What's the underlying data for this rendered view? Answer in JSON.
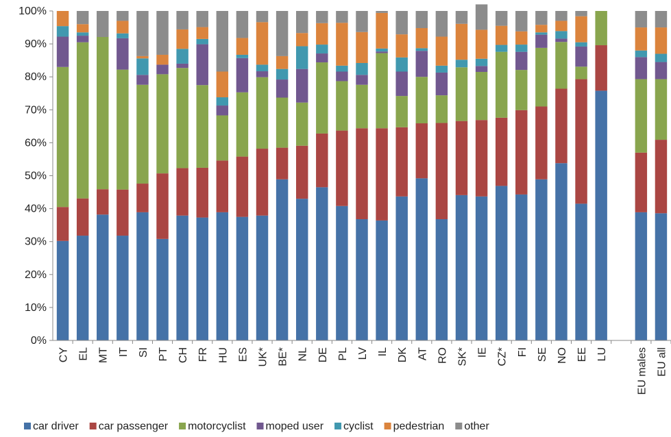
{
  "chart_data": {
    "type": "bar",
    "stacked": true,
    "categories": [
      "CY",
      "EL",
      "MT",
      "IT",
      "SI",
      "PT",
      "CH",
      "FR",
      "HU",
      "ES",
      "UK*",
      "BE*",
      "NL",
      "DE",
      "PL",
      "LV",
      "IL",
      "DK",
      "AT",
      "RO",
      "SK*",
      "IE",
      "CZ*",
      "FI",
      "SE",
      "NO",
      "EE",
      "LU",
      "",
      "EU males",
      "EU all"
    ],
    "ylim": [
      0,
      100
    ],
    "y_ticks": [
      "0%",
      "10%",
      "20%",
      "30%",
      "40%",
      "50%",
      "60%",
      "70%",
      "80%",
      "90%",
      "100%"
    ],
    "grid": false,
    "legend_position": "bottom",
    "series": [
      {
        "name": "car driver",
        "color": "#4572a7",
        "values": [
          30.2,
          31.8,
          38.2,
          31.8,
          38.9,
          30.8,
          37.9,
          37.3,
          38.9,
          37.5,
          37.9,
          48.9,
          43.0,
          46.5,
          40.8,
          36.8,
          36.4,
          43.7,
          49.2,
          36.8,
          44.1,
          43.7,
          46.9,
          44.3,
          48.9,
          53.8,
          41.5,
          75.8,
          0,
          38.9,
          38.6
        ]
      },
      {
        "name": "car passenger",
        "color": "#aa4643",
        "values": [
          10.3,
          11.3,
          7.7,
          14.0,
          8.7,
          19.9,
          14.4,
          15.1,
          15.7,
          18.3,
          20.3,
          9.6,
          16.1,
          16.3,
          22.9,
          27.6,
          28.0,
          21.0,
          16.7,
          29.2,
          22.5,
          23.2,
          20.7,
          25.6,
          22.1,
          22.6,
          37.8,
          13.8,
          0,
          18.1,
          22.3
        ]
      },
      {
        "name": "motorcyclist",
        "color": "#89a54e",
        "values": [
          42.5,
          47.4,
          46.2,
          36.4,
          30.0,
          30.1,
          30.4,
          25.1,
          13.7,
          19.5,
          21.7,
          15.2,
          13.1,
          21.6,
          15.0,
          13.2,
          22.8,
          9.5,
          14.1,
          8.4,
          16.3,
          14.6,
          20.0,
          12.2,
          17.8,
          14.2,
          3.8,
          10.4,
          0,
          22.3,
          18.4
        ]
      },
      {
        "name": "moped user",
        "color": "#71588f",
        "values": [
          9.2,
          2.0,
          0,
          9.5,
          3.0,
          2.9,
          1.3,
          12.4,
          3.0,
          10.4,
          1.8,
          5.5,
          10.2,
          2.7,
          2.9,
          3.0,
          0.5,
          7.4,
          7.9,
          6.9,
          0,
          1.8,
          0,
          5.5,
          4.0,
          1.0,
          6.1,
          0,
          0,
          6.7,
          5.2
        ]
      },
      {
        "name": "cyclist",
        "color": "#4198af",
        "values": [
          3.2,
          1.0,
          0,
          1.5,
          5.0,
          0,
          4.5,
          1.6,
          2.5,
          1.0,
          2.0,
          3.2,
          6.9,
          2.7,
          1.8,
          3.6,
          0.9,
          4.3,
          0.8,
          2.1,
          2.3,
          2.2,
          2.1,
          2.2,
          0.7,
          2.3,
          1.3,
          0,
          0,
          2.0,
          2.5
        ]
      },
      {
        "name": "pedestrian",
        "color": "#db843d",
        "values": [
          4.6,
          2.5,
          0,
          3.8,
          0.7,
          3.0,
          5.9,
          3.6,
          7.8,
          5.1,
          12.9,
          3.9,
          4.0,
          6.5,
          13.0,
          9.4,
          10.8,
          7.0,
          6.1,
          8.8,
          10.9,
          8.8,
          5.8,
          4.0,
          2.3,
          3.1,
          7.9,
          0,
          0,
          7.0,
          8.0
        ]
      },
      {
        "name": "other",
        "color": "#8c8c8c",
        "values": [
          0,
          4.0,
          7.9,
          3.0,
          13.7,
          13.3,
          5.6,
          4.9,
          18.4,
          8.2,
          3.4,
          13.7,
          6.7,
          3.7,
          3.6,
          6.4,
          0.6,
          7.1,
          5.2,
          7.8,
          3.9,
          7.7,
          4.5,
          6.2,
          4.2,
          3.0,
          1.6,
          0,
          0,
          5.0,
          5.0
        ]
      }
    ]
  }
}
